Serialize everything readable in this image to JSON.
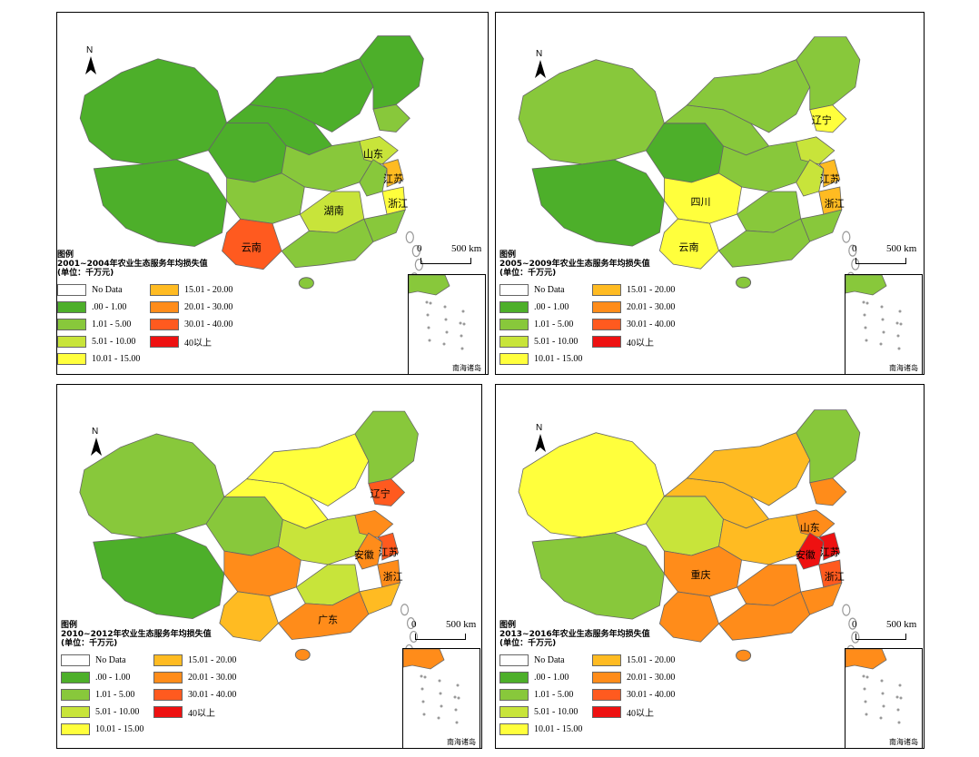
{
  "colors": {
    "no_data": "#ffffff",
    "c0": "#4daf2a",
    "c1": "#88c83b",
    "c2": "#c8e43a",
    "c3": "#ffff3c",
    "c4": "#ffbb22",
    "c5": "#ff8c1a",
    "c6": "#ff5a1f",
    "c7": "#ee1111",
    "border": "#666666",
    "coast": "#999999"
  },
  "legend_items": [
    {
      "label": "No Data",
      "color": "no_data"
    },
    {
      "label": "15.01 - 20.00",
      "color": "c4"
    },
    {
      "label": ".00 - 1.00",
      "color": "c0"
    },
    {
      "label": "20.01 - 30.00",
      "color": "c5"
    },
    {
      "label": "1.01 - 5.00",
      "color": "c1"
    },
    {
      "label": "30.01 - 40.00",
      "color": "c6"
    },
    {
      "label": "5.01 - 10.00",
      "color": "c2"
    },
    {
      "label": "40以上",
      "color": "c7"
    },
    {
      "label": "10.01 - 15.00",
      "color": "c3"
    }
  ],
  "common": {
    "legend_title": "图例",
    "unit": "(单位：千万元)",
    "north": "N",
    "scale_zero": "0",
    "scale_km": "500 km",
    "inset_caption": "南海诸岛"
  },
  "panels": [
    {
      "id": "p1",
      "period_title": "2001~2004年农业生态服务年均损失值",
      "regions": {
        "northeast": "c0",
        "north": "c0",
        "xinjiang": "c0",
        "tibet": "c0",
        "qinghai": "c0",
        "gansu": "c0",
        "sichuan": "c1",
        "yunnan": "c6",
        "central": "c1",
        "hunan": "c2",
        "guangdong": "c1",
        "shandong": "c2",
        "jiangsu": "c4",
        "zhejiang": "c3",
        "liaoning": "c1",
        "anhui": "c1",
        "coast_se": "c1"
      },
      "labels": [
        {
          "text": "山东",
          "key": "shandong"
        },
        {
          "text": "江苏",
          "key": "jiangsu"
        },
        {
          "text": "浙江",
          "key": "zhejiang"
        },
        {
          "text": "湖南",
          "key": "hunan"
        },
        {
          "text": "云南",
          "key": "yunnan"
        }
      ]
    },
    {
      "id": "p2",
      "period_title": "2005~2009年农业生态服务年均损失值",
      "regions": {
        "northeast": "c1",
        "north": "c1",
        "xinjiang": "c1",
        "tibet": "c0",
        "qinghai": "c0",
        "gansu": "c1",
        "sichuan": "c3",
        "yunnan": "c3",
        "central": "c1",
        "hunan": "c1",
        "guangdong": "c1",
        "shandong": "c2",
        "jiangsu": "c4",
        "zhejiang": "c4",
        "liaoning": "c3",
        "anhui": "c2",
        "coast_se": "c1"
      },
      "labels": [
        {
          "text": "辽宁",
          "key": "liaoning"
        },
        {
          "text": "江苏",
          "key": "jiangsu"
        },
        {
          "text": "浙江",
          "key": "zhejiang"
        },
        {
          "text": "四川",
          "key": "sichuan"
        },
        {
          "text": "云南",
          "key": "yunnan"
        }
      ]
    },
    {
      "id": "p3",
      "period_title": "2010~2012年农业生态服务年均损失值",
      "regions": {
        "northeast": "c1",
        "north": "c3",
        "xinjiang": "c1",
        "tibet": "c0",
        "qinghai": "c1",
        "gansu": "c3",
        "sichuan": "c5",
        "yunnan": "c4",
        "central": "c2",
        "hunan": "c2",
        "guangdong": "c5",
        "shandong": "c5",
        "jiangsu": "c6",
        "zhejiang": "c5",
        "liaoning": "c6",
        "anhui": "c5",
        "coast_se": "c4"
      },
      "labels": [
        {
          "text": "辽宁",
          "key": "liaoning"
        },
        {
          "text": "江苏",
          "key": "jiangsu"
        },
        {
          "text": "安徽",
          "key": "anhui"
        },
        {
          "text": "浙江",
          "key": "zhejiang"
        },
        {
          "text": "广东",
          "key": "guangdong"
        }
      ]
    },
    {
      "id": "p4",
      "period_title": "2013~2016年农业生态服务年均损失值",
      "regions": {
        "northeast": "c1",
        "north": "c4",
        "xinjiang": "c3",
        "tibet": "c1",
        "qinghai": "c2",
        "gansu": "c4",
        "sichuan": "c5",
        "yunnan": "c5",
        "central": "c4",
        "hunan": "c5",
        "guangdong": "c5",
        "shandong": "c5",
        "jiangsu": "c7",
        "zhejiang": "c6",
        "liaoning": "c5",
        "anhui": "c7",
        "coast_se": "c5"
      },
      "labels": [
        {
          "text": "山东",
          "key": "shandong"
        },
        {
          "text": "江苏",
          "key": "jiangsu"
        },
        {
          "text": "安徽",
          "key": "anhui"
        },
        {
          "text": "重庆",
          "key": "sichuan"
        },
        {
          "text": "浙江",
          "key": "zhejiang"
        }
      ]
    }
  ]
}
